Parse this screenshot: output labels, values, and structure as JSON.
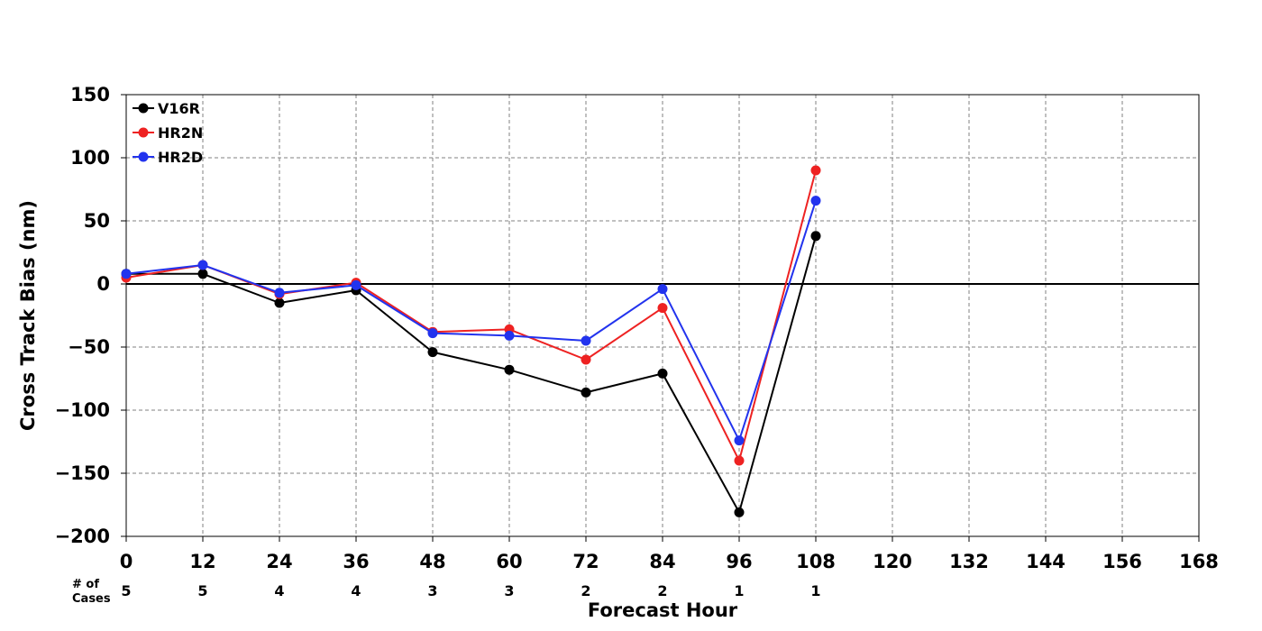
{
  "chart_data": {
    "type": "line",
    "xlabel": "Forecast Hour",
    "ylabel": "Cross Track Bias (nm)",
    "xlim": [
      0,
      168
    ],
    "ylim": [
      -200,
      150
    ],
    "x_ticks": [
      0,
      12,
      24,
      36,
      48,
      60,
      72,
      84,
      96,
      108,
      120,
      132,
      144,
      156,
      168
    ],
    "y_ticks": [
      -200,
      -150,
      -100,
      -50,
      0,
      50,
      100,
      150
    ],
    "y_tick_labels": [
      "−200",
      "−150",
      "−100",
      "−50",
      "0",
      "50",
      "100",
      "150"
    ],
    "grid": true,
    "zero_line": true,
    "legend_position": "top-left",
    "x": [
      0,
      12,
      24,
      36,
      48,
      60,
      72,
      84,
      96,
      108
    ],
    "series": [
      {
        "name": "V16R",
        "color": "#000000",
        "values": [
          8,
          8,
          -15,
          -5,
          -54,
          -68,
          -86,
          -71,
          -181,
          38
        ]
      },
      {
        "name": "HR2N",
        "color": "#ee2222",
        "values": [
          5,
          15,
          -8,
          1,
          -38,
          -36,
          -60,
          -19,
          -140,
          90
        ]
      },
      {
        "name": "HR2D",
        "color": "#2233ee",
        "values": [
          8,
          15,
          -7,
          -1,
          -39,
          -41,
          -45,
          -4,
          -124,
          66
        ]
      }
    ],
    "cases_header": [
      "# of",
      "Cases"
    ],
    "cases": [
      {
        "x": 0,
        "count": "5"
      },
      {
        "x": 12,
        "count": "5"
      },
      {
        "x": 24,
        "count": "4"
      },
      {
        "x": 36,
        "count": "4"
      },
      {
        "x": 48,
        "count": "3"
      },
      {
        "x": 60,
        "count": "3"
      },
      {
        "x": 72,
        "count": "2"
      },
      {
        "x": 84,
        "count": "2"
      },
      {
        "x": 96,
        "count": "1"
      },
      {
        "x": 108,
        "count": "1"
      }
    ]
  }
}
